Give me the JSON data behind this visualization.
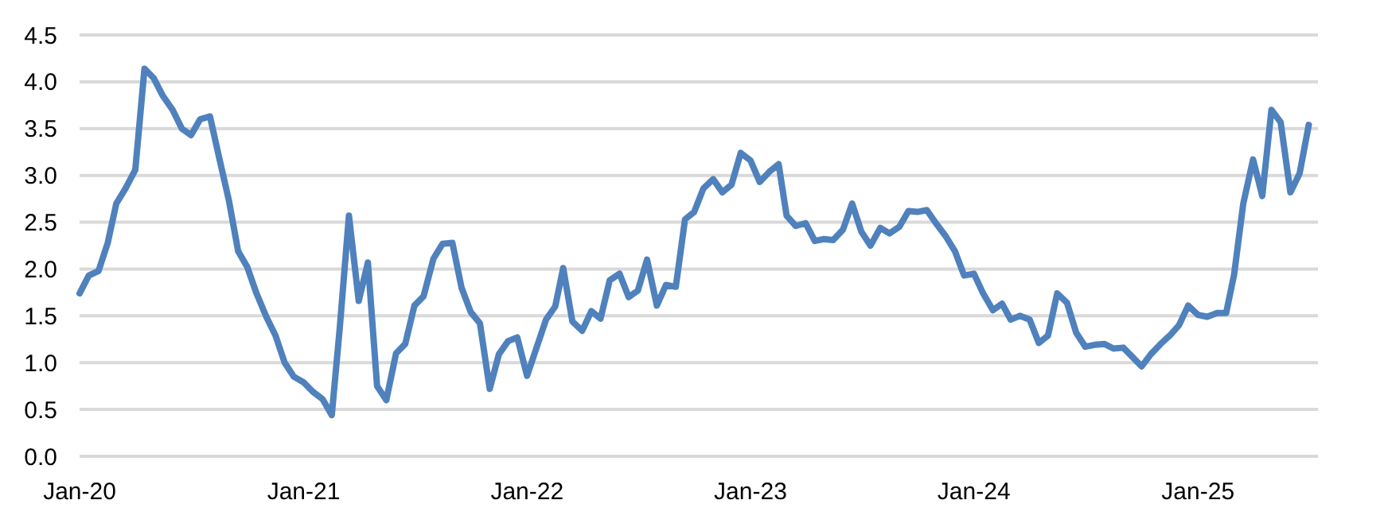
{
  "chart_data": {
    "type": "line",
    "x": [
      "2020-01-01",
      "2020-01-16",
      "2020-02-01",
      "2020-02-16",
      "2020-03-01",
      "2020-03-16",
      "2020-04-01",
      "2020-04-16",
      "2020-05-01",
      "2020-05-16",
      "2020-06-01",
      "2020-06-16",
      "2020-07-01",
      "2020-07-16",
      "2020-08-01",
      "2020-08-16",
      "2020-09-01",
      "2020-09-16",
      "2020-10-01",
      "2020-10-16",
      "2020-11-01",
      "2020-11-16",
      "2020-12-01",
      "2020-12-16",
      "2021-01-01",
      "2021-01-16",
      "2021-02-01",
      "2021-02-16",
      "2021-03-01",
      "2021-03-16",
      "2021-04-01",
      "2021-04-16",
      "2021-05-01",
      "2021-05-16",
      "2021-06-01",
      "2021-06-16",
      "2021-07-01",
      "2021-07-16",
      "2021-08-01",
      "2021-08-16",
      "2021-09-01",
      "2021-09-16",
      "2021-10-01",
      "2021-10-16",
      "2021-11-01",
      "2021-11-16",
      "2021-12-01",
      "2021-12-16",
      "2022-01-01",
      "2022-01-16",
      "2022-02-01",
      "2022-02-16",
      "2022-03-01",
      "2022-03-16",
      "2022-04-01",
      "2022-04-16",
      "2022-05-01",
      "2022-05-16",
      "2022-06-01",
      "2022-06-16",
      "2022-07-01",
      "2022-07-16",
      "2022-08-01",
      "2022-08-16",
      "2022-09-01",
      "2022-09-16",
      "2022-10-01",
      "2022-10-16",
      "2022-11-01",
      "2022-11-16",
      "2022-12-01",
      "2022-12-16",
      "2023-01-01",
      "2023-01-16",
      "2023-02-01",
      "2023-02-16",
      "2023-03-01",
      "2023-03-16",
      "2023-04-01",
      "2023-04-16",
      "2023-05-01",
      "2023-05-16",
      "2023-06-01",
      "2023-06-16",
      "2023-07-01",
      "2023-07-16",
      "2023-08-01",
      "2023-08-16",
      "2023-09-01",
      "2023-09-16",
      "2023-10-01",
      "2023-10-16",
      "2023-11-01",
      "2023-11-16",
      "2023-12-01",
      "2023-12-16",
      "2024-01-01",
      "2024-01-16",
      "2024-02-01",
      "2024-02-16",
      "2024-03-01",
      "2024-03-16",
      "2024-04-01",
      "2024-04-16",
      "2024-05-01",
      "2024-05-16",
      "2024-06-01",
      "2024-06-16",
      "2024-07-01",
      "2024-07-16",
      "2024-08-01",
      "2024-08-16",
      "2024-09-01",
      "2024-09-16",
      "2024-10-01",
      "2024-10-16",
      "2024-11-01",
      "2024-11-16",
      "2024-12-01",
      "2024-12-16",
      "2025-01-01",
      "2025-01-16",
      "2025-02-01",
      "2025-02-16",
      "2025-03-01",
      "2025-03-16",
      "2025-04-01",
      "2025-04-16",
      "2025-05-01",
      "2025-05-16",
      "2025-06-01",
      "2025-06-16",
      "2025-07-01"
    ],
    "series": [
      {
        "color": "#4f81bd",
        "values": [
          1.74,
          1.93,
          1.98,
          2.28,
          2.7,
          2.86,
          3.06,
          4.14,
          4.04,
          3.85,
          3.7,
          3.5,
          3.43,
          3.6,
          3.63,
          3.19,
          2.73,
          2.19,
          2.02,
          1.74,
          1.49,
          1.29,
          1.0,
          0.85,
          0.79,
          0.69,
          0.61,
          0.44,
          1.37,
          2.57,
          1.66,
          2.07,
          0.75,
          0.6,
          1.1,
          1.2,
          1.61,
          1.71,
          2.11,
          2.27,
          2.28,
          1.8,
          1.54,
          1.42,
          0.72,
          1.09,
          1.23,
          1.27,
          0.86,
          1.15,
          1.46,
          1.6,
          2.01,
          1.44,
          1.34,
          1.55,
          1.47,
          1.88,
          1.95,
          1.7,
          1.77,
          2.1,
          1.61,
          1.83,
          1.81,
          2.53,
          2.61,
          2.86,
          2.96,
          2.82,
          2.9,
          3.24,
          3.16,
          2.93,
          3.04,
          3.12,
          2.57,
          2.46,
          2.49,
          2.3,
          2.32,
          2.31,
          2.42,
          2.7,
          2.4,
          2.25,
          2.44,
          2.38,
          2.45,
          2.62,
          2.61,
          2.63,
          2.48,
          2.35,
          2.19,
          1.93,
          1.95,
          1.74,
          1.56,
          1.63,
          1.46,
          1.5,
          1.46,
          1.21,
          1.29,
          1.74,
          1.64,
          1.32,
          1.17,
          1.19,
          1.2,
          1.15,
          1.16,
          1.06,
          0.96,
          1.09,
          1.2,
          1.29,
          1.4,
          1.61,
          1.51,
          1.49,
          1.53,
          1.53,
          1.94,
          2.7,
          3.17,
          2.78,
          3.7,
          3.57,
          2.82,
          3.02,
          3.54
        ]
      }
    ],
    "xlim": [
      "2020-01-01",
      "2025-07-16"
    ],
    "xticks": [
      {
        "value": "2020-01-01",
        "label": "Jan-20"
      },
      {
        "value": "2021-01-01",
        "label": "Jan-21"
      },
      {
        "value": "2022-01-01",
        "label": "Jan-22"
      },
      {
        "value": "2023-01-01",
        "label": "Jan-23"
      },
      {
        "value": "2024-01-01",
        "label": "Jan-24"
      },
      {
        "value": "2025-01-01",
        "label": "Jan-25"
      }
    ],
    "ylim": [
      0,
      4.5
    ],
    "yticks": [
      {
        "value": 0,
        "label": "0.0"
      },
      {
        "value": 0.5,
        "label": "0.5"
      },
      {
        "value": 1,
        "label": "1.0"
      },
      {
        "value": 1.5,
        "label": "1.5"
      },
      {
        "value": 2,
        "label": "2.0"
      },
      {
        "value": 2.5,
        "label": "2.5"
      },
      {
        "value": 3,
        "label": "3.0"
      },
      {
        "value": 3.5,
        "label": "3.5"
      },
      {
        "value": 4,
        "label": "4.0"
      },
      {
        "value": 4.5,
        "label": "4.5"
      }
    ],
    "grid": "y",
    "line_style": "solid"
  }
}
